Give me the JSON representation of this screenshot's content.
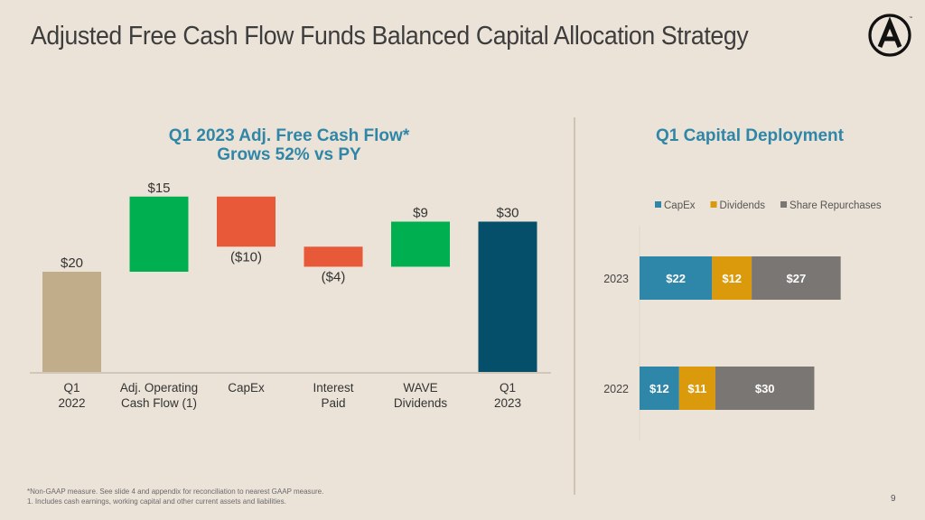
{
  "slide": {
    "title": "Adjusted Free Cash Flow Funds Balanced Capital Allocation Strategy",
    "page_number": "9",
    "logo": "circle-A-logo-icon",
    "footnotes": [
      "*Non-GAAP measure. See slide 4 and appendix for reconciliation to nearest GAAP measure.",
      "1. Includes cash earnings, working capital and other current assets and liabilities."
    ]
  },
  "chart_data": [
    {
      "type": "bar",
      "subtype": "waterfall",
      "title_line1": "Q1 2023 Adj. Free Cash Flow*",
      "title_line2": "Grows 52% vs PY",
      "categories": [
        "Q1\n2022",
        "Adj. Operating\nCash Flow (1)",
        "CapEx",
        "Interest\nPaid",
        "WAVE\nDividends",
        "Q1\n2023"
      ],
      "values": [
        20,
        15,
        -10,
        -4,
        9,
        30
      ],
      "kinds": [
        "total",
        "delta",
        "delta",
        "delta",
        "delta",
        "total"
      ],
      "labels": [
        "$20",
        "$15",
        "($10)",
        "($4)",
        "$9",
        "$30"
      ],
      "colors": {
        "start_total": "#c2ad8a",
        "increase": "#00b050",
        "decrease": "#e8593a",
        "end_total": "#064f6a"
      },
      "xlabel": "",
      "ylabel": "",
      "ylim": [
        0,
        36
      ],
      "grid": false
    },
    {
      "type": "bar",
      "subtype": "stacked-horizontal",
      "title": "Q1 Capital Deployment",
      "categories": [
        "2023",
        "2022"
      ],
      "series": [
        {
          "name": "CapEx",
          "values": [
            22,
            12
          ],
          "labels": [
            "$22",
            "$12"
          ],
          "color": "#2e86a8"
        },
        {
          "name": "Dividends",
          "values": [
            12,
            11
          ],
          "labels": [
            "$12",
            "$11"
          ],
          "color": "#db9a0c"
        },
        {
          "name": "Share Repurchases",
          "values": [
            27,
            30
          ],
          "labels": [
            "$27",
            "$30"
          ],
          "color": "#797674"
        }
      ],
      "legend": "top",
      "xlim": [
        0,
        80
      ],
      "grid": false
    }
  ]
}
